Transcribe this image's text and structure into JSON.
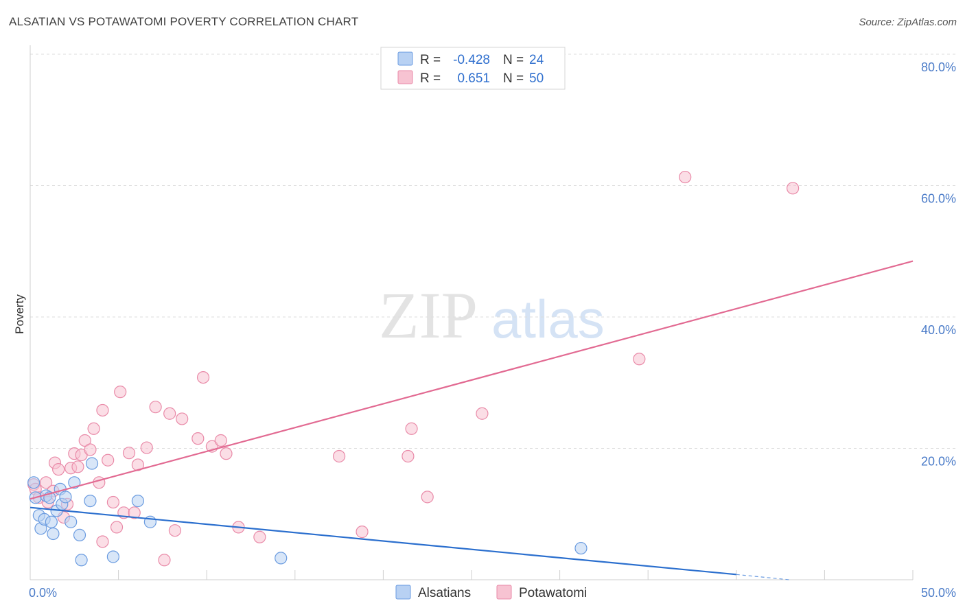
{
  "title": "ALSATIAN VS POTAWATOMI POVERTY CORRELATION CHART",
  "source": "Source: ZipAtlas.com",
  "watermark": {
    "zip": "ZIP",
    "atlas": "atlas"
  },
  "colors": {
    "alsatian_fill": "#b8d1f3",
    "alsatian_stroke": "#6a9be0",
    "alsatian_line": "#2b6fce",
    "potawatomi_fill": "#f7c3d2",
    "potawatomi_stroke": "#e98aa8",
    "potawatomi_line": "#e26a92",
    "tick_label": "#4a7bc8"
  },
  "legend": {
    "rows": [
      {
        "r_label": "R =",
        "r_value": "-0.428",
        "n_label": "N =",
        "n_value": "24"
      },
      {
        "r_label": "R =",
        "r_value": "0.651",
        "n_label": "N =",
        "n_value": "50"
      }
    ]
  },
  "chart_data": {
    "type": "scatter",
    "title": "ALSATIAN VS POTAWATOMI POVERTY CORRELATION CHART",
    "xlabel": "",
    "ylabel": "Poverty",
    "xlim": [
      0,
      50
    ],
    "ylim": [
      0,
      80
    ],
    "x_tick_labels": [
      "0.0%",
      "50.0%"
    ],
    "y_ticks": [
      20,
      40,
      60,
      80
    ],
    "y_tick_labels": [
      "20.0%",
      "40.0%",
      "60.0%",
      "80.0%"
    ],
    "grid": true,
    "legend_position": "bottom",
    "series": [
      {
        "name": "Alsatians",
        "r": -0.428,
        "n": 24,
        "trend": {
          "x": [
            0,
            40
          ],
          "y": [
            11.0,
            0.8
          ]
        },
        "trend_dashed_extension": {
          "x": [
            40,
            43
          ],
          "y": [
            0.8,
            0.0
          ]
        },
        "points": [
          {
            "x": 0.2,
            "y": 14.8
          },
          {
            "x": 0.3,
            "y": 12.5
          },
          {
            "x": 0.5,
            "y": 9.8
          },
          {
            "x": 0.6,
            "y": 7.8
          },
          {
            "x": 0.8,
            "y": 9.2
          },
          {
            "x": 0.9,
            "y": 12.8
          },
          {
            "x": 1.1,
            "y": 12.5
          },
          {
            "x": 1.2,
            "y": 8.8
          },
          {
            "x": 1.3,
            "y": 7.0
          },
          {
            "x": 1.5,
            "y": 10.5
          },
          {
            "x": 1.7,
            "y": 13.8
          },
          {
            "x": 1.8,
            "y": 11.5
          },
          {
            "x": 2.0,
            "y": 12.6
          },
          {
            "x": 2.3,
            "y": 8.8
          },
          {
            "x": 2.5,
            "y": 14.8
          },
          {
            "x": 2.8,
            "y": 6.8
          },
          {
            "x": 2.9,
            "y": 3.0
          },
          {
            "x": 3.4,
            "y": 12.0
          },
          {
            "x": 3.5,
            "y": 17.7
          },
          {
            "x": 4.7,
            "y": 3.5
          },
          {
            "x": 6.1,
            "y": 12.0
          },
          {
            "x": 6.8,
            "y": 8.8
          },
          {
            "x": 14.2,
            "y": 3.3
          },
          {
            "x": 31.2,
            "y": 4.8
          }
        ]
      },
      {
        "name": "Potawatomi",
        "r": 0.651,
        "n": 50,
        "trend": {
          "x": [
            0,
            50
          ],
          "y": [
            12.3,
            48.5
          ]
        },
        "points": [
          {
            "x": 0.2,
            "y": 14.5
          },
          {
            "x": 0.3,
            "y": 13.8
          },
          {
            "x": 0.5,
            "y": 12.5
          },
          {
            "x": 0.9,
            "y": 14.8
          },
          {
            "x": 1.0,
            "y": 11.8
          },
          {
            "x": 1.3,
            "y": 13.5
          },
          {
            "x": 1.4,
            "y": 17.8
          },
          {
            "x": 1.6,
            "y": 16.8
          },
          {
            "x": 1.9,
            "y": 9.5
          },
          {
            "x": 2.1,
            "y": 11.5
          },
          {
            "x": 2.3,
            "y": 17.0
          },
          {
            "x": 2.5,
            "y": 19.2
          },
          {
            "x": 2.7,
            "y": 17.2
          },
          {
            "x": 2.9,
            "y": 19.0
          },
          {
            "x": 3.1,
            "y": 21.2
          },
          {
            "x": 3.4,
            "y": 19.8
          },
          {
            "x": 3.6,
            "y": 23.0
          },
          {
            "x": 3.9,
            "y": 14.8
          },
          {
            "x": 4.1,
            "y": 25.8
          },
          {
            "x": 4.1,
            "y": 5.8
          },
          {
            "x": 4.4,
            "y": 18.2
          },
          {
            "x": 4.7,
            "y": 11.8
          },
          {
            "x": 4.9,
            "y": 8.0
          },
          {
            "x": 5.1,
            "y": 28.6
          },
          {
            "x": 5.3,
            "y": 10.2
          },
          {
            "x": 5.6,
            "y": 19.3
          },
          {
            "x": 5.9,
            "y": 10.2
          },
          {
            "x": 6.1,
            "y": 17.5
          },
          {
            "x": 6.6,
            "y": 20.1
          },
          {
            "x": 7.1,
            "y": 26.3
          },
          {
            "x": 7.6,
            "y": 3.0
          },
          {
            "x": 7.9,
            "y": 25.3
          },
          {
            "x": 8.2,
            "y": 7.5
          },
          {
            "x": 8.6,
            "y": 24.5
          },
          {
            "x": 9.5,
            "y": 21.5
          },
          {
            "x": 9.8,
            "y": 30.8
          },
          {
            "x": 10.3,
            "y": 20.3
          },
          {
            "x": 10.8,
            "y": 21.2
          },
          {
            "x": 11.1,
            "y": 19.2
          },
          {
            "x": 11.8,
            "y": 8.0
          },
          {
            "x": 13.0,
            "y": 6.5
          },
          {
            "x": 17.5,
            "y": 18.8
          },
          {
            "x": 18.8,
            "y": 7.3
          },
          {
            "x": 21.4,
            "y": 18.8
          },
          {
            "x": 21.6,
            "y": 23.0
          },
          {
            "x": 22.5,
            "y": 12.6
          },
          {
            "x": 25.6,
            "y": 25.3
          },
          {
            "x": 34.5,
            "y": 33.6
          },
          {
            "x": 37.1,
            "y": 61.3
          },
          {
            "x": 43.2,
            "y": 59.6
          }
        ]
      }
    ]
  }
}
